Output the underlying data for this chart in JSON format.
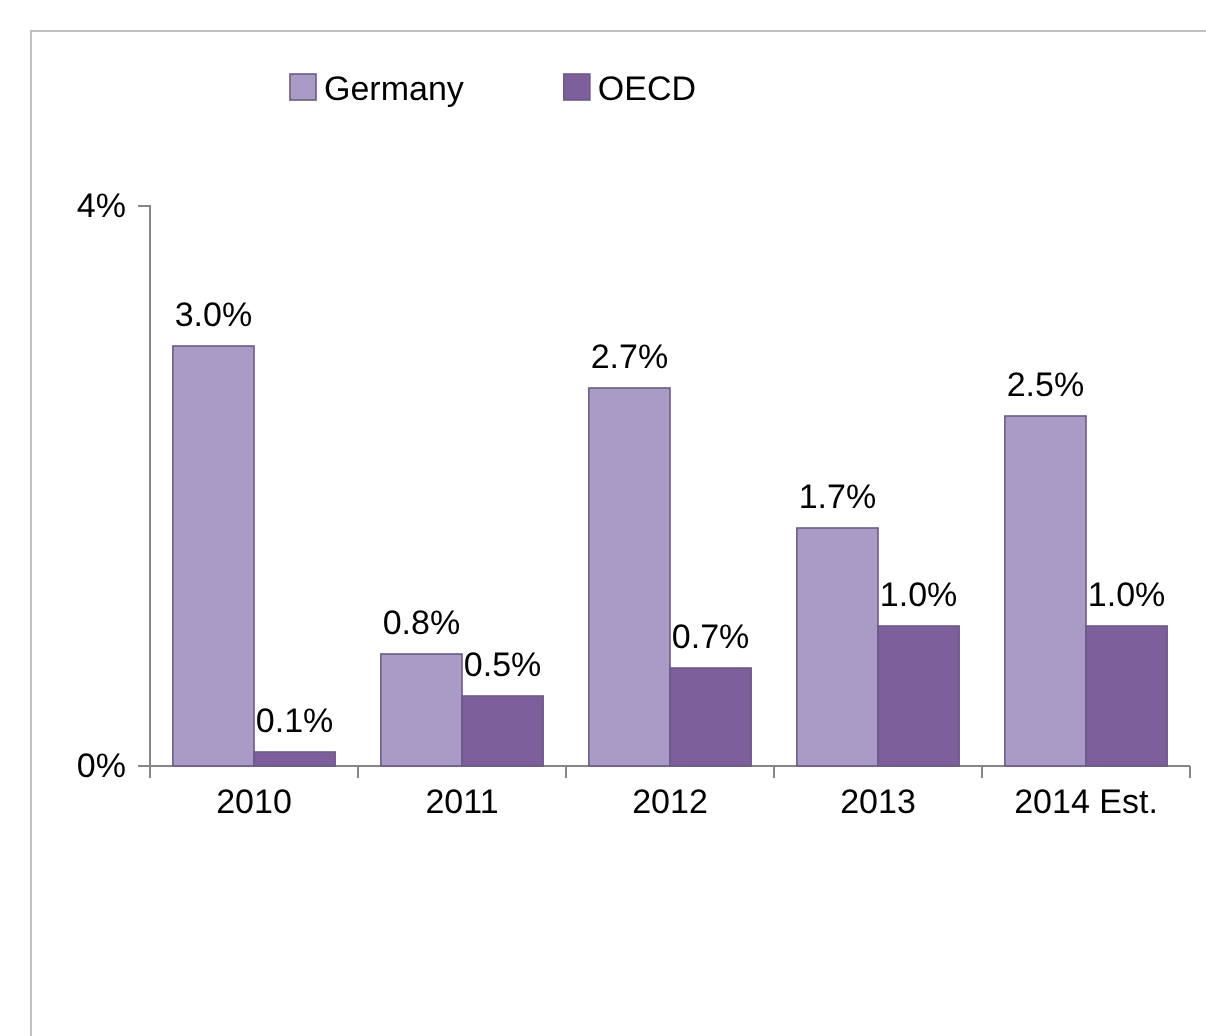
{
  "chart_data": {
    "type": "bar",
    "categories": [
      "2010",
      "2011",
      "2012",
      "2013",
      "2014 Est."
    ],
    "series": [
      {
        "name": "Germany",
        "color": "#a99bc6",
        "values": [
          3.0,
          0.8,
          2.7,
          1.7,
          2.5
        ],
        "value_labels": [
          "3.0%",
          "0.8%",
          "2.7%",
          "1.7%",
          "2.5%"
        ]
      },
      {
        "name": "OECD",
        "color": "#7d5f9c",
        "values": [
          0.1,
          0.5,
          0.7,
          1.0,
          1.0
        ],
        "value_labels": [
          "0.1%",
          "0.5%",
          "0.7%",
          "1.0%",
          "1.0%"
        ]
      }
    ],
    "ylim": [
      0,
      4
    ],
    "yticks": [
      {
        "value": 0,
        "label": "0%"
      },
      {
        "value": 4,
        "label": "4%"
      }
    ],
    "grid": false,
    "legend": "top"
  }
}
